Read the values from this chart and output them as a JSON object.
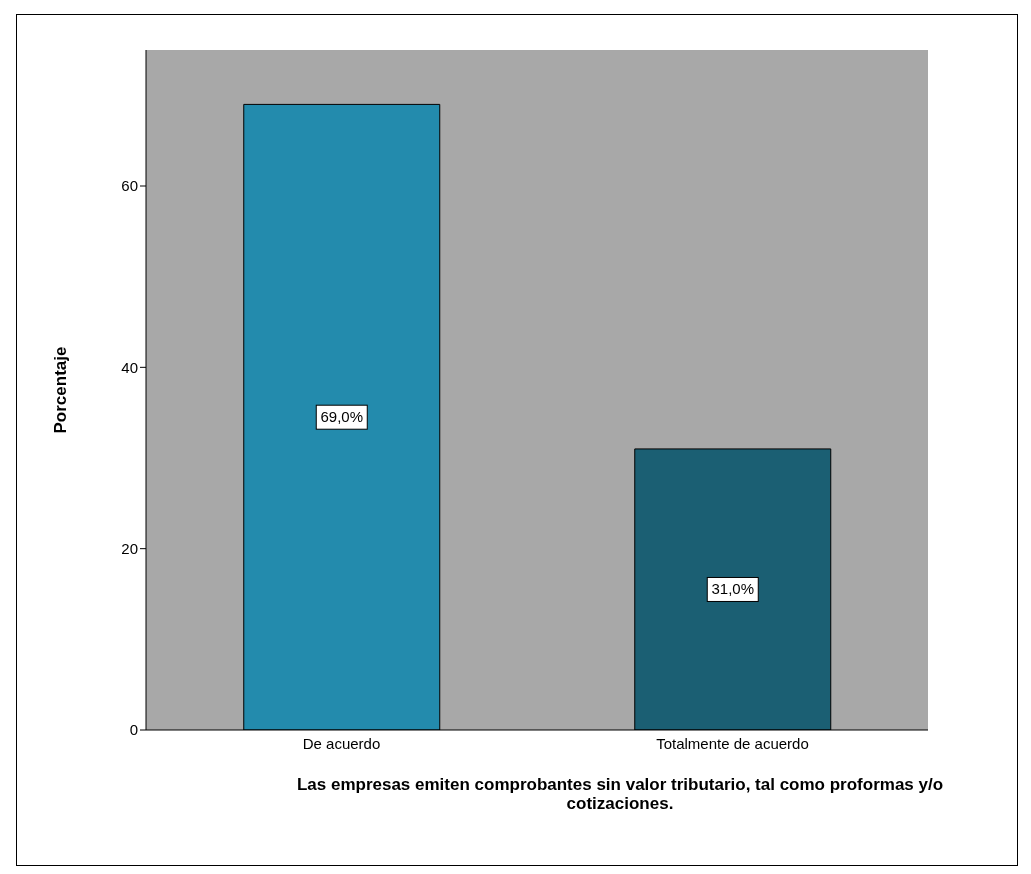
{
  "chart_data": {
    "type": "bar",
    "xlabel": "Las empresas emiten comprobantes sin valor tributario, tal como proformas y/o cotizaciones.",
    "ylabel": "Porcentaje",
    "categories": [
      "De acuerdo",
      "Totalmente de acuerdo"
    ],
    "values": [
      69.0,
      31.0
    ],
    "colors": [
      "#238bad",
      "#1b5f73"
    ],
    "value_labels": [
      "69,0%",
      "31,0%"
    ],
    "ylim": [
      0,
      75
    ],
    "yticks": [
      0,
      20,
      40,
      60
    ]
  }
}
